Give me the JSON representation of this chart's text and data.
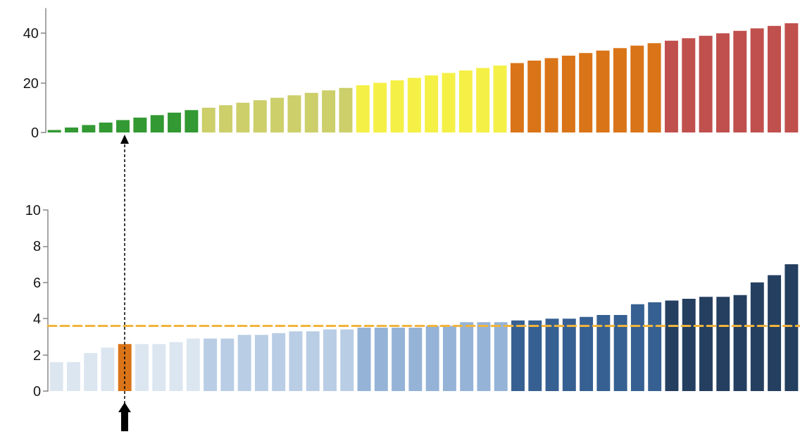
{
  "chart_data": [
    {
      "type": "bar",
      "categories": [
        null,
        null,
        null,
        null,
        null,
        null,
        null,
        null,
        null,
        null,
        null,
        null,
        null,
        null,
        null,
        null,
        null,
        null,
        null,
        null,
        null,
        null,
        null,
        null,
        null,
        null,
        null,
        null,
        null,
        null,
        null,
        null,
        null,
        null,
        null,
        null,
        null,
        null,
        null,
        null,
        null,
        null,
        null,
        null
      ],
      "values": [
        1,
        2,
        3,
        4,
        5,
        6,
        7,
        8,
        9,
        10,
        11,
        12,
        13,
        14,
        15,
        16,
        17,
        18,
        19,
        20,
        21,
        22,
        23,
        24,
        25,
        26,
        27,
        28,
        29,
        30,
        31,
        32,
        33,
        34,
        35,
        36,
        37,
        38,
        39,
        40,
        41,
        42,
        43,
        44
      ],
      "colors": [
        "#339933",
        "#339933",
        "#339933",
        "#339933",
        "#339933",
        "#339933",
        "#339933",
        "#339933",
        "#339933",
        "#cccf6a",
        "#cccf6a",
        "#cccf6a",
        "#cccf6a",
        "#cccf6a",
        "#cccf6a",
        "#cccf6a",
        "#cccf6a",
        "#cccf6a",
        "#f5f046",
        "#f5f046",
        "#f5f046",
        "#f5f046",
        "#f5f046",
        "#f5f046",
        "#f5f046",
        "#f5f046",
        "#f5f046",
        "#da7418",
        "#da7418",
        "#da7418",
        "#da7418",
        "#da7418",
        "#da7418",
        "#da7418",
        "#da7418",
        "#da7418",
        "#c0504d",
        "#c0504d",
        "#c0504d",
        "#c0504d",
        "#c0504d",
        "#c0504d",
        "#c0504d",
        "#c0504d"
      ],
      "ylim": [
        0,
        50
      ],
      "yticks": [
        0,
        20,
        40
      ]
    },
    {
      "type": "bar",
      "categories": [
        null,
        null,
        null,
        null,
        null,
        null,
        null,
        null,
        null,
        null,
        null,
        null,
        null,
        null,
        null,
        null,
        null,
        null,
        null,
        null,
        null,
        null,
        null,
        null,
        null,
        null,
        null,
        null,
        null,
        null,
        null,
        null,
        null,
        null,
        null,
        null,
        null,
        null,
        null,
        null,
        null,
        null,
        null,
        null
      ],
      "values": [
        1.6,
        1.6,
        2.1,
        2.4,
        2.6,
        2.6,
        2.6,
        2.7,
        2.9,
        2.9,
        2.9,
        3.1,
        3.1,
        3.2,
        3.3,
        3.3,
        3.4,
        3.4,
        3.5,
        3.5,
        3.5,
        3.5,
        3.6,
        3.6,
        3.8,
        3.8,
        3.8,
        3.9,
        3.9,
        4.0,
        4.0,
        4.1,
        4.2,
        4.2,
        4.8,
        4.9,
        5.0,
        5.1,
        5.2,
        5.2,
        5.3,
        6.0,
        6.4,
        7.0
      ],
      "colors": [
        "#dce6f1",
        "#dce6f1",
        "#dce6f1",
        "#dce6f1",
        "#da7418",
        "#dce6f1",
        "#dce6f1",
        "#dce6f1",
        "#dce6f1",
        "#b9cde5",
        "#b9cde5",
        "#b9cde5",
        "#b9cde5",
        "#b9cde5",
        "#b9cde5",
        "#b9cde5",
        "#b9cde5",
        "#b9cde5",
        "#95b3d7",
        "#95b3d7",
        "#95b3d7",
        "#95b3d7",
        "#95b3d7",
        "#95b3d7",
        "#95b3d7",
        "#95b3d7",
        "#95b3d7",
        "#366092",
        "#366092",
        "#366092",
        "#366092",
        "#366092",
        "#366092",
        "#366092",
        "#366092",
        "#366092",
        "#243f60",
        "#243f60",
        "#243f60",
        "#243f60",
        "#243f60",
        "#243f60",
        "#243f60",
        "#243f60"
      ],
      "ylim": [
        0,
        10
      ],
      "yticks": [
        0,
        2,
        4,
        6,
        8,
        10
      ],
      "ref_lines": [
        {
          "axis": "y",
          "value": 3.6,
          "color": "#f0b43c",
          "line_style": "dashed"
        }
      ]
    }
  ]
}
